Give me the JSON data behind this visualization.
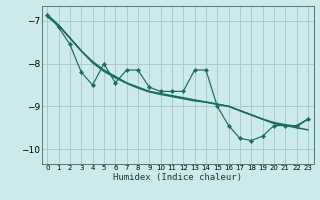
{
  "xlabel": "Humidex (Indice chaleur)",
  "bg_color": "#cceaea",
  "grid_color": "#aacccc",
  "line_color": "#1a6b60",
  "x_values": [
    0,
    1,
    2,
    3,
    4,
    5,
    6,
    7,
    8,
    9,
    10,
    11,
    12,
    13,
    14,
    15,
    16,
    17,
    18,
    19,
    20,
    21,
    22,
    23
  ],
  "y_jagged": [
    -6.85,
    -7.15,
    -7.55,
    -8.2,
    -8.5,
    -8.0,
    -8.45,
    -8.15,
    -8.15,
    -8.55,
    -8.65,
    -8.65,
    -8.65,
    -8.15,
    -8.15,
    -9.0,
    -9.45,
    -9.75,
    -9.8,
    -9.7,
    -9.45,
    -9.45,
    -9.45,
    -9.3
  ],
  "y_smooth1": [
    -6.85,
    -7.1,
    -7.4,
    -7.7,
    -7.95,
    -8.15,
    -8.3,
    -8.45,
    -8.55,
    -8.65,
    -8.7,
    -8.75,
    -8.8,
    -8.85,
    -8.9,
    -8.95,
    -9.0,
    -9.1,
    -9.2,
    -9.3,
    -9.4,
    -9.45,
    -9.5,
    -9.55
  ],
  "y_smooth2": [
    -6.9,
    -7.1,
    -7.4,
    -7.7,
    -7.98,
    -8.18,
    -8.33,
    -8.46,
    -8.57,
    -8.66,
    -8.72,
    -8.77,
    -8.82,
    -8.87,
    -8.9,
    -8.95,
    -9.0,
    -9.1,
    -9.2,
    -9.3,
    -9.38,
    -9.43,
    -9.47,
    -9.3
  ],
  "ylim": [
    -10.35,
    -6.65
  ],
  "xlim": [
    -0.5,
    23.5
  ],
  "yticks": [
    -10,
    -9,
    -8,
    -7
  ],
  "xticks": [
    0,
    1,
    2,
    3,
    4,
    5,
    6,
    7,
    8,
    9,
    10,
    11,
    12,
    13,
    14,
    15,
    16,
    17,
    18,
    19,
    20,
    21,
    22,
    23
  ]
}
